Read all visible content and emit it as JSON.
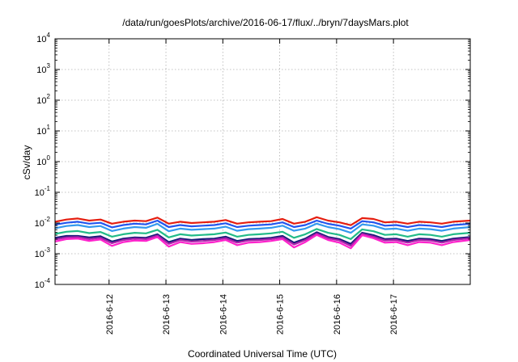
{
  "chart_data": {
    "type": "line",
    "title": "/data/run/goesPlots/archive/2016-06-17/flux/../bryn/7daysMars.plot",
    "xlabel": "Coordinated Universal Time (UTC)",
    "ylabel": "cSv/day",
    "yscale": "log",
    "ylim": [
      0.0001,
      10000
    ],
    "xlim": [
      -0.95,
      6.35
    ],
    "grid": true,
    "legend": "none",
    "y_ticks": [
      {
        "value": 0.0001,
        "base": "10",
        "exp": "-4"
      },
      {
        "value": 0.001,
        "base": "10",
        "exp": "-3"
      },
      {
        "value": 0.01,
        "base": "10",
        "exp": "-2"
      },
      {
        "value": 0.1,
        "base": "10",
        "exp": "-1"
      },
      {
        "value": 1,
        "base": "10",
        "exp": "0"
      },
      {
        "value": 10,
        "base": "10",
        "exp": "1"
      },
      {
        "value": 100,
        "base": "10",
        "exp": "2"
      },
      {
        "value": 1000,
        "base": "10",
        "exp": "3"
      },
      {
        "value": 10000,
        "base": "10",
        "exp": "4"
      }
    ],
    "x_ticks": [
      {
        "value": 0,
        "label": "2016-6-12"
      },
      {
        "value": 1,
        "label": "2016-6-13"
      },
      {
        "value": 2,
        "label": "2016-6-14"
      },
      {
        "value": 3,
        "label": "2016-6-15"
      },
      {
        "value": 4,
        "label": "2016-6-16"
      },
      {
        "value": 5,
        "label": "2016-6-17"
      }
    ],
    "x": [
      -0.95,
      -0.75,
      -0.55,
      -0.35,
      -0.15,
      0.05,
      0.25,
      0.45,
      0.65,
      0.85,
      1.05,
      1.25,
      1.45,
      1.65,
      1.85,
      2.05,
      2.25,
      2.45,
      2.65,
      2.85,
      3.05,
      3.25,
      3.45,
      3.65,
      3.85,
      4.05,
      4.25,
      4.45,
      4.65,
      4.85,
      5.05,
      5.25,
      5.45,
      5.65,
      5.85,
      6.05,
      6.35
    ],
    "series": [
      {
        "color": "#e51e10",
        "values": [
          0.011,
          0.013,
          0.014,
          0.012,
          0.013,
          0.0095,
          0.011,
          0.012,
          0.0115,
          0.015,
          0.0095,
          0.011,
          0.01,
          0.0105,
          0.011,
          0.0125,
          0.0095,
          0.0105,
          0.011,
          0.0115,
          0.0135,
          0.0095,
          0.011,
          0.0155,
          0.012,
          0.0105,
          0.0085,
          0.0145,
          0.0135,
          0.0105,
          0.011,
          0.0095,
          0.011,
          0.0105,
          0.0095,
          0.011,
          0.012
        ]
      },
      {
        "color": "#2255ee",
        "values": [
          0.0088,
          0.0102,
          0.011,
          0.0095,
          0.0102,
          0.0072,
          0.0086,
          0.0095,
          0.009,
          0.012,
          0.0074,
          0.0086,
          0.0078,
          0.0082,
          0.0086,
          0.0098,
          0.0074,
          0.0082,
          0.0086,
          0.009,
          0.0105,
          0.0074,
          0.0086,
          0.012,
          0.0094,
          0.0082,
          0.0066,
          0.0115,
          0.0105,
          0.0082,
          0.0086,
          0.0074,
          0.0086,
          0.0082,
          0.0074,
          0.0086,
          0.0094
        ]
      },
      {
        "color": "#3399ee",
        "values": [
          0.0068,
          0.008,
          0.0086,
          0.0074,
          0.008,
          0.0055,
          0.0066,
          0.0074,
          0.007,
          0.0094,
          0.0054,
          0.0066,
          0.006,
          0.0063,
          0.0066,
          0.0076,
          0.0056,
          0.0063,
          0.0066,
          0.007,
          0.0082,
          0.0056,
          0.0066,
          0.0095,
          0.0074,
          0.0063,
          0.0048,
          0.009,
          0.0082,
          0.0063,
          0.0066,
          0.0056,
          0.0066,
          0.0063,
          0.0056,
          0.0066,
          0.0074
        ]
      },
      {
        "color": "#22bb88",
        "values": [
          0.0044,
          0.0052,
          0.0055,
          0.0047,
          0.0051,
          0.0036,
          0.0043,
          0.0048,
          0.0046,
          0.006,
          0.0034,
          0.0043,
          0.0039,
          0.0041,
          0.0043,
          0.0049,
          0.0036,
          0.0041,
          0.0043,
          0.0046,
          0.0052,
          0.0033,
          0.0043,
          0.0064,
          0.0048,
          0.0041,
          0.003,
          0.0062,
          0.0054,
          0.0041,
          0.0043,
          0.0036,
          0.0043,
          0.0041,
          0.0036,
          0.0043,
          0.0048
        ]
      },
      {
        "color": "#1a1a7a",
        "values": [
          0.0033,
          0.0038,
          0.0038,
          0.0034,
          0.0037,
          0.0025,
          0.0031,
          0.0034,
          0.0033,
          0.0043,
          0.0024,
          0.0031,
          0.0028,
          0.003,
          0.0031,
          0.0036,
          0.0026,
          0.003,
          0.0031,
          0.0033,
          0.0038,
          0.0023,
          0.0031,
          0.005,
          0.0035,
          0.003,
          0.0021,
          0.0048,
          0.004,
          0.003,
          0.0031,
          0.0026,
          0.0031,
          0.003,
          0.0026,
          0.0031,
          0.0035
        ]
      },
      {
        "color": "#aa22aa",
        "values": [
          0.0029,
          0.0034,
          0.0035,
          0.003,
          0.0033,
          0.0022,
          0.0028,
          0.0031,
          0.003,
          0.0039,
          0.0021,
          0.0028,
          0.0025,
          0.0026,
          0.0028,
          0.0032,
          0.0023,
          0.0027,
          0.0028,
          0.003,
          0.0034,
          0.002,
          0.0028,
          0.0045,
          0.0032,
          0.0027,
          0.0018,
          0.0044,
          0.0036,
          0.0027,
          0.0028,
          0.0023,
          0.0028,
          0.0027,
          0.0023,
          0.0028,
          0.0032
        ]
      },
      {
        "color": "#ff22cc",
        "values": [
          0.0025,
          0.003,
          0.0031,
          0.0026,
          0.0029,
          0.0018,
          0.0024,
          0.0027,
          0.0026,
          0.0035,
          0.0017,
          0.0024,
          0.0021,
          0.0022,
          0.0024,
          0.0028,
          0.0019,
          0.0023,
          0.0024,
          0.0026,
          0.003,
          0.0016,
          0.0024,
          0.0041,
          0.0028,
          0.0023,
          0.0015,
          0.004,
          0.0032,
          0.0023,
          0.0024,
          0.0019,
          0.0024,
          0.0023,
          0.0019,
          0.0024,
          0.0028
        ]
      }
    ]
  }
}
